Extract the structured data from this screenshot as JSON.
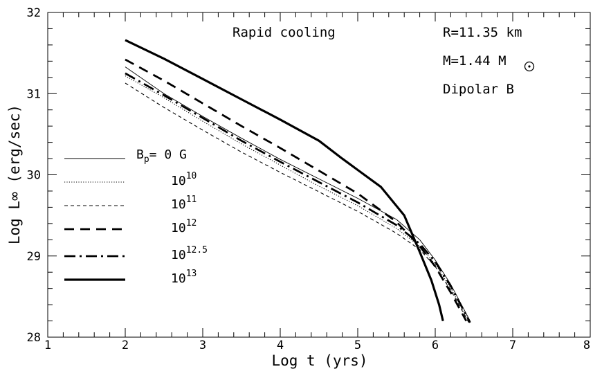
{
  "chart_data": {
    "type": "line",
    "xlabel": "Log t (yrs)",
    "ylabel": "Log L∞ (erg/sec)",
    "xlim": [
      1,
      8
    ],
    "ylim": [
      28,
      32
    ],
    "xticks": [
      "1",
      "2",
      "3",
      "4",
      "5",
      "6",
      "7",
      "8"
    ],
    "yticks": [
      "28",
      "29",
      "30",
      "31",
      "32"
    ],
    "grid": false,
    "legend_placement": "left",
    "annotations": {
      "title": "Rapid cooling",
      "radius": "R=11.35 km",
      "mass_prefix": "M=1.44 M",
      "field": "Dipolar B"
    },
    "legend_header": "B",
    "legend_header_sub": "p",
    "legend_header_rest": "=  0   G",
    "series": [
      {
        "name": "0 G",
        "base": "",
        "exp": "",
        "style": "thin",
        "x": [
          2.0,
          2.5,
          3.0,
          3.5,
          4.0,
          4.5,
          5.0,
          5.5,
          5.8,
          6.0,
          6.2,
          6.45
        ],
        "y": [
          31.33,
          31.0,
          30.72,
          30.45,
          30.19,
          29.95,
          29.71,
          29.45,
          29.2,
          28.95,
          28.65,
          28.2
        ]
      },
      {
        "name": "10^10",
        "base": "10",
        "exp": "10",
        "style": "dotted",
        "x": [
          2.0,
          2.5,
          3.0,
          3.5,
          4.0,
          4.5,
          5.0,
          5.5,
          5.8,
          6.0,
          6.2,
          6.45
        ],
        "y": [
          31.22,
          30.95,
          30.66,
          30.38,
          30.12,
          29.86,
          29.62,
          29.34,
          29.12,
          28.9,
          28.6,
          28.18
        ]
      },
      {
        "name": "10^11",
        "base": "10",
        "exp": "11",
        "style": "short-dash",
        "x": [
          2.0,
          2.5,
          3.0,
          3.5,
          4.0,
          4.5,
          5.0,
          5.5,
          5.8,
          6.0,
          6.2,
          6.45
        ],
        "y": [
          31.13,
          30.83,
          30.55,
          30.28,
          30.03,
          29.79,
          29.55,
          29.28,
          29.08,
          28.87,
          28.58,
          28.15
        ]
      },
      {
        "name": "10^12",
        "base": "10",
        "exp": "12",
        "style": "long-dash",
        "x": [
          2.0,
          2.5,
          3.0,
          3.5,
          4.0,
          4.5,
          5.0,
          5.5,
          5.8,
          6.0,
          6.2,
          6.4
        ],
        "y": [
          31.42,
          31.16,
          30.88,
          30.6,
          30.33,
          30.05,
          29.77,
          29.42,
          29.12,
          28.87,
          28.55,
          28.2
        ]
      },
      {
        "name": "10^12.5",
        "base": "10",
        "exp": "12.5",
        "style": "dash-dot",
        "x": [
          2.0,
          2.5,
          3.0,
          3.5,
          4.0,
          4.5,
          5.0,
          5.5,
          5.8,
          6.0,
          6.2,
          6.45
        ],
        "y": [
          31.25,
          30.98,
          30.7,
          30.42,
          30.16,
          29.91,
          29.66,
          29.38,
          29.15,
          28.93,
          28.63,
          28.18
        ]
      },
      {
        "name": "10^13",
        "base": "10",
        "exp": "13",
        "style": "thick",
        "x": [
          2.0,
          2.5,
          3.0,
          3.5,
          4.0,
          4.5,
          4.8,
          5.0,
          5.3,
          5.6,
          5.8,
          5.95,
          6.05,
          6.1
        ],
        "y": [
          31.66,
          31.43,
          31.18,
          30.93,
          30.68,
          30.42,
          30.2,
          30.06,
          29.85,
          29.5,
          29.05,
          28.7,
          28.4,
          28.2
        ]
      }
    ]
  }
}
